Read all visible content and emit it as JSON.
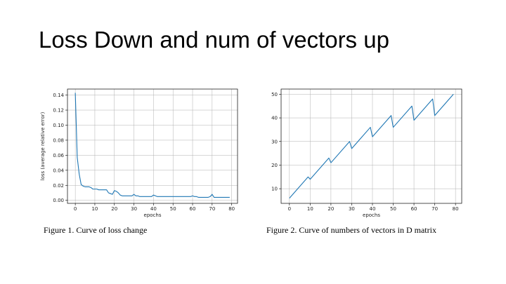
{
  "slide": {
    "title": "Loss Down and num of vectors up"
  },
  "captions": [
    "Figure 1. Curve of loss change",
    "Figure 2. Curve of numbers of vectors in D matrix"
  ],
  "colors": {
    "line": "#1f77b4",
    "grid": "#b0b0b0",
    "axis": "#000000"
  },
  "chart_data": [
    {
      "type": "line",
      "title": "",
      "xlabel": "epochs",
      "ylabel": "loss (average relative error)",
      "xlim": [
        -4,
        83
      ],
      "ylim": [
        -0.004,
        0.148
      ],
      "grid": true,
      "xticks": [
        0,
        10,
        20,
        30,
        40,
        50,
        60,
        70,
        80
      ],
      "yticks": [
        0.0,
        0.02,
        0.04,
        0.06,
        0.08,
        0.1,
        0.12,
        0.14
      ],
      "ytick_labels": [
        "0.00",
        "0.02",
        "0.04",
        "0.06",
        "0.08",
        "0.10",
        "0.12",
        "0.14"
      ],
      "series": [
        {
          "x": [
            0,
            1,
            2,
            3,
            4,
            5,
            6,
            7,
            8,
            9,
            10,
            11,
            12,
            13,
            14,
            15,
            16,
            17,
            18,
            19,
            20,
            21,
            22,
            23,
            24,
            25,
            26,
            27,
            28,
            29,
            30,
            31,
            32,
            33,
            34,
            35,
            36,
            37,
            38,
            39,
            40,
            41,
            42,
            43,
            44,
            45,
            46,
            47,
            48,
            49,
            50,
            51,
            52,
            53,
            54,
            55,
            56,
            57,
            58,
            59,
            60,
            61,
            62,
            63,
            64,
            65,
            66,
            67,
            68,
            69,
            70,
            71,
            72,
            73,
            74,
            75,
            76,
            77,
            78,
            79
          ],
          "values": [
            0.143,
            0.057,
            0.035,
            0.021,
            0.019,
            0.018,
            0.018,
            0.018,
            0.017,
            0.015,
            0.015,
            0.015,
            0.014,
            0.014,
            0.014,
            0.014,
            0.014,
            0.01,
            0.009,
            0.008,
            0.013,
            0.012,
            0.01,
            0.007,
            0.006,
            0.006,
            0.006,
            0.006,
            0.006,
            0.006,
            0.008,
            0.006,
            0.006,
            0.005,
            0.005,
            0.005,
            0.005,
            0.005,
            0.005,
            0.005,
            0.007,
            0.006,
            0.005,
            0.005,
            0.005,
            0.005,
            0.005,
            0.005,
            0.005,
            0.005,
            0.005,
            0.005,
            0.005,
            0.005,
            0.005,
            0.005,
            0.005,
            0.005,
            0.005,
            0.005,
            0.006,
            0.005,
            0.005,
            0.004,
            0.004,
            0.004,
            0.004,
            0.004,
            0.004,
            0.005,
            0.008,
            0.004,
            0.004,
            0.004,
            0.004,
            0.004,
            0.004,
            0.004,
            0.004,
            0.004
          ]
        }
      ]
    },
    {
      "type": "line",
      "title": "",
      "xlabel": "epochs",
      "ylabel": "num of vectors in D matrix",
      "xlim": [
        -4,
        83
      ],
      "ylim": [
        3.8,
        52.2
      ],
      "grid": true,
      "xticks": [
        0,
        10,
        20,
        30,
        40,
        50,
        60,
        70,
        80
      ],
      "yticks": [
        10,
        20,
        30,
        40,
        50
      ],
      "ytick_labels": [
        "10",
        "20",
        "30",
        "40",
        "50"
      ],
      "series": [
        {
          "x": [
            0,
            9,
            10,
            19,
            20,
            29,
            30,
            39,
            40,
            49,
            50,
            59,
            60,
            69,
            70,
            79
          ],
          "values": [
            6,
            15,
            14,
            23,
            21,
            30,
            27,
            36,
            32,
            41,
            36,
            45,
            39,
            48,
            41,
            50
          ]
        }
      ]
    }
  ]
}
